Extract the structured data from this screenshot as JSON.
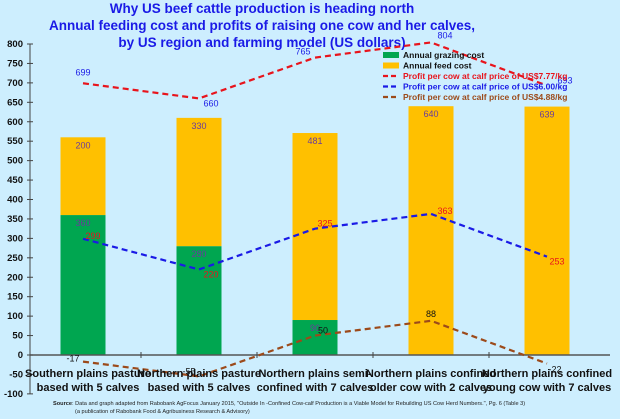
{
  "chart_data": {
    "type": "bar",
    "stacked": true,
    "title": "Why US beef cattle production is heading north",
    "subtitle": [
      "Annual feeding cost and profits of raising one cow and her calves,",
      "by US region and farming model (US dollars)"
    ],
    "xlabel": "",
    "ylabel": "",
    "ylim": [
      -100,
      800
    ],
    "yticks": [
      -100,
      -50,
      0,
      50,
      100,
      150,
      200,
      250,
      300,
      350,
      400,
      450,
      500,
      550,
      600,
      650,
      700,
      750,
      800
    ],
    "grid": false,
    "legend_position": "top-right",
    "categories": [
      [
        "Southern plains pasture",
        "based with 5 calves"
      ],
      [
        "Northern plains pasture",
        "based with 5 calves"
      ],
      [
        "Northern plains semi-",
        "confined with 7 calves"
      ],
      [
        "Northern plains confined",
        "older cow with 2 calves"
      ],
      [
        "Northern plains confined",
        "young cow with 7 calves"
      ]
    ],
    "series": [
      {
        "name": "Annual grazing cost",
        "kind": "bar",
        "color": "#00a650",
        "values": [
          360,
          280,
          90,
          0,
          0
        ],
        "labels": [
          "360",
          "280",
          "90",
          "",
          "0"
        ]
      },
      {
        "name": "Annual feed cost",
        "kind": "bar",
        "color": "#ffc000",
        "values": [
          200,
          330,
          481,
          640,
          639
        ],
        "labels": [
          "200",
          "330",
          "481",
          "640",
          "639"
        ]
      },
      {
        "name": "Profit per cow at calf price of US$7.77/kg",
        "kind": "line",
        "color": "#e8141c",
        "label_color": "#1a1ae6",
        "values": [
          699,
          660,
          765,
          804,
          693
        ]
      },
      {
        "name": "Profit per cow at calf price of US$6.00/kg",
        "kind": "line",
        "color": "#1a1ae6",
        "label_color": "#e8141c",
        "values": [
          299,
          220,
          325,
          363,
          253
        ]
      },
      {
        "name": "Profit per cow at calf price of US$4.88/kg",
        "kind": "line",
        "color": "#9c4a1a",
        "label_color": "#111111",
        "values": [
          -17,
          -55,
          50,
          88,
          -22
        ]
      }
    ],
    "source": {
      "bold": "Source",
      "line1": ": Data and graph adapted from Rabobank AgFocus January 2015, \"Outside In -Confined Cow-calf Production is a Viable Model for Rebuilding US Cow Herd Numbers.\", Pg. 6 (Table 3)",
      "line2": "(a publication of Rabobank Food & Agribusiness Research & Advisory)"
    }
  }
}
